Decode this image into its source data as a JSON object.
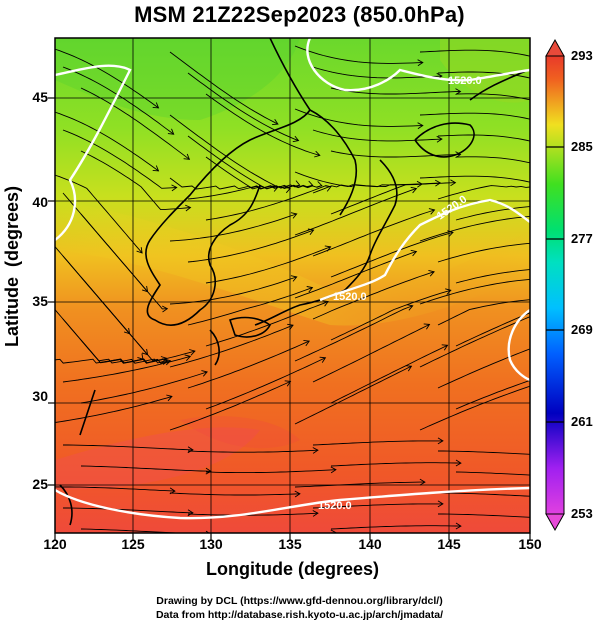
{
  "title": "MSM 21Z22Sep2023 (850.0hPa)",
  "axes": {
    "xlabel": "Longitude (degrees)",
    "ylabel": "Latitude  (degrees)",
    "xticks": [
      "120",
      "125",
      "130",
      "135",
      "140",
      "145",
      "150"
    ],
    "yticks": [
      "25",
      "30",
      "35",
      "40",
      "45"
    ],
    "xlim": [
      120,
      150
    ],
    "ylim": [
      22.4,
      47.6
    ]
  },
  "colorbar": {
    "ticks": [
      "253",
      "261",
      "269",
      "277",
      "285",
      "293"
    ],
    "range": [
      253,
      293
    ],
    "colors": [
      "#e040e0",
      "#a020f0",
      "#0000c0",
      "#0060ff",
      "#00c0ff",
      "#00e0c0",
      "#00e070",
      "#40e020",
      "#b0e020",
      "#f0e020",
      "#f0a020",
      "#f06020",
      "#e83a2a"
    ]
  },
  "contour_labels": [
    "1520.0",
    "1520.0",
    "1520.0",
    "1520.0"
  ],
  "credits": {
    "line1": "Drawing by DCL (https://www.gfd-dennou.org/library/dcl/)",
    "line2": "Data from http://database.rish.kyoto-u.ac.jp/arch/jmadata/"
  }
}
